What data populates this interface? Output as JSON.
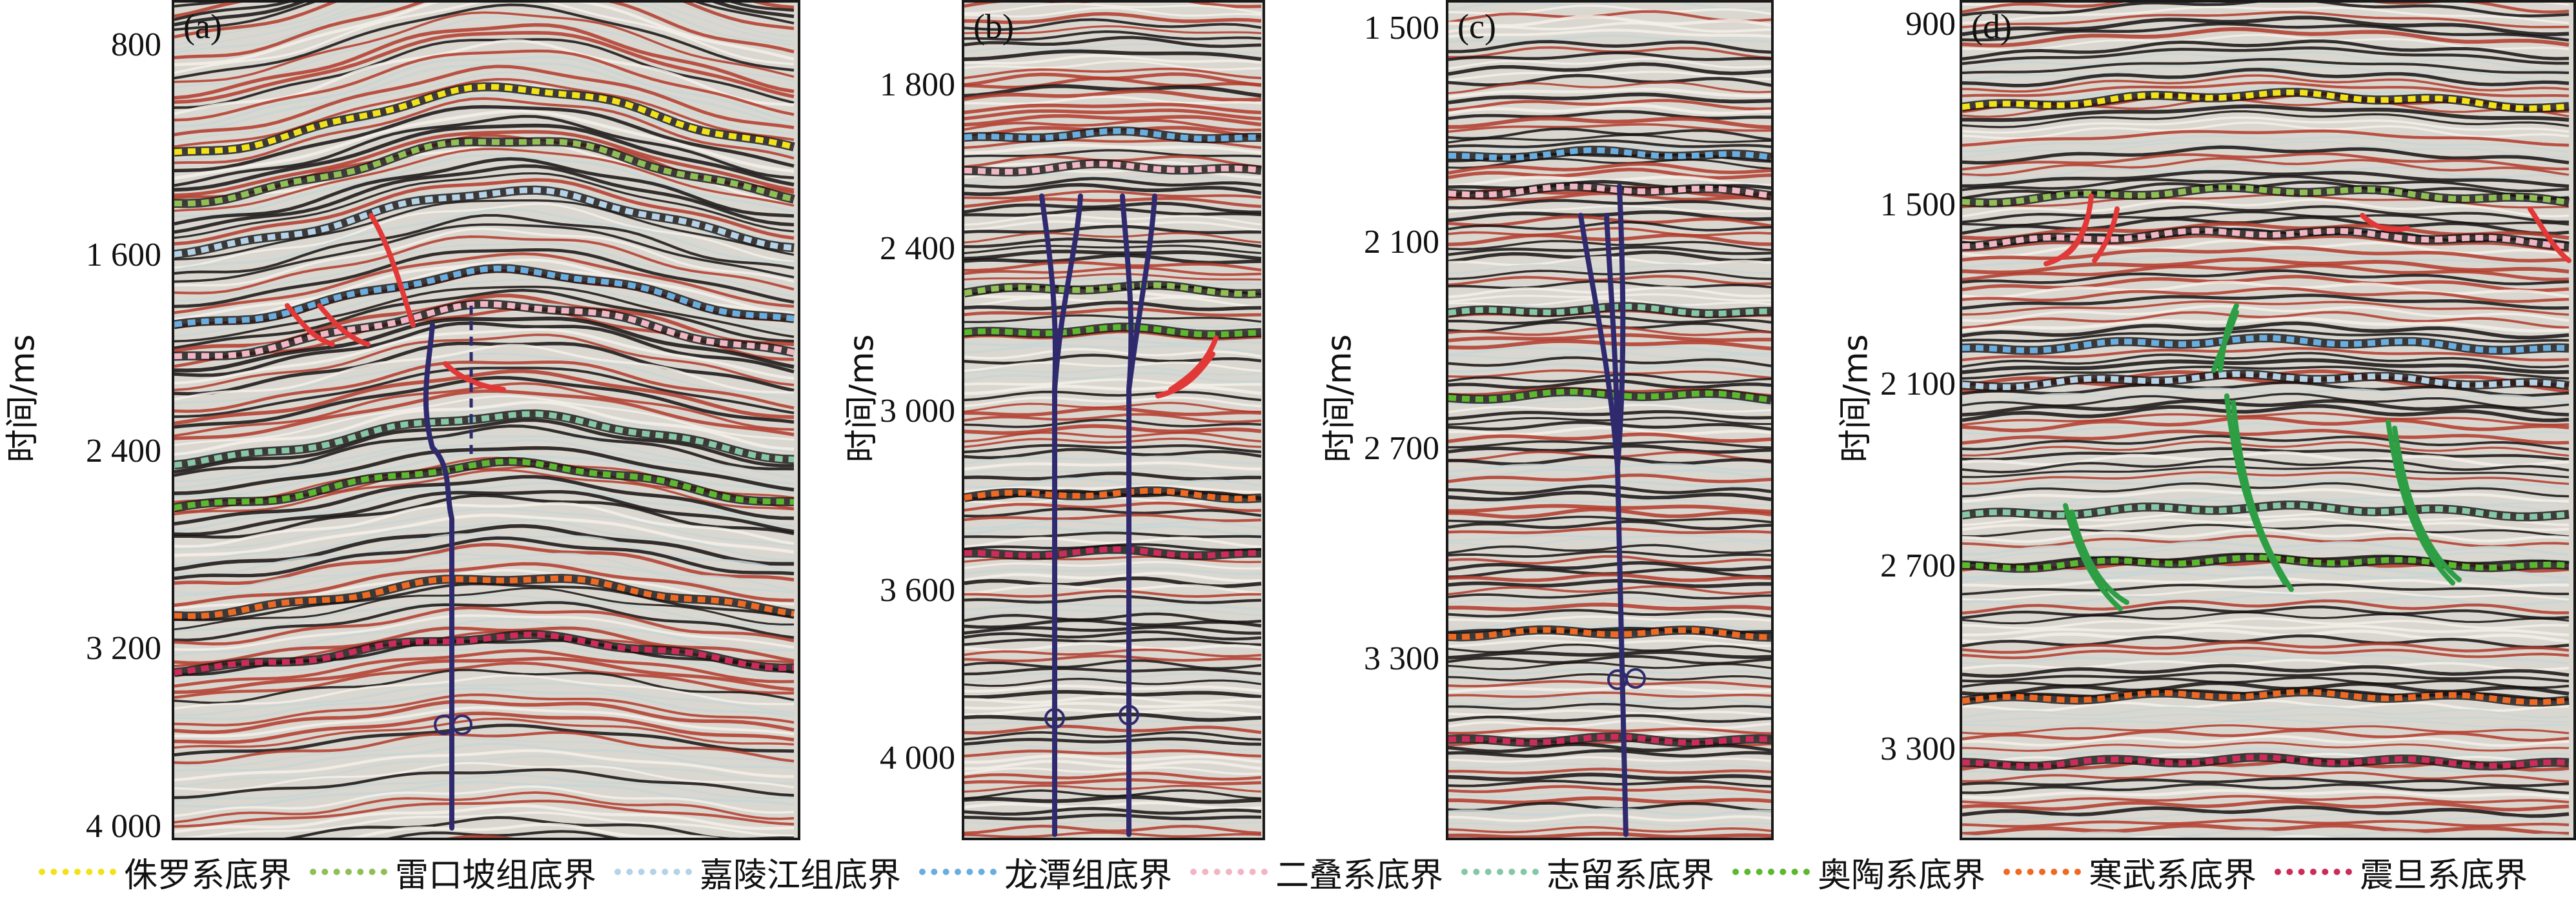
{
  "colors": {
    "jurassic": "#f2e21a",
    "leikoupo": "#8fbf55",
    "jialingjiang": "#b5d2e6",
    "longtan": "#6aaee0",
    "permian": "#f0b6c4",
    "silurian": "#86c7a6",
    "ordovician": "#5cb82e",
    "cambrian": "#ee6a24",
    "sinian": "#cc2c5a",
    "fault_red": "#e23838",
    "fault_green": "#2e9e44",
    "well": "#2f2a6e"
  },
  "panels": [
    {
      "label": "(a)",
      "ylabel": "时间/ms",
      "ticks": [
        "800",
        "1 600",
        "2 400",
        "3 200",
        "4 000"
      ]
    },
    {
      "label": "(b)",
      "ylabel": "时间/ms",
      "ticks": [
        "1 800",
        "2 400",
        "3 000",
        "3 600",
        "4 000"
      ]
    },
    {
      "label": "(c)",
      "ylabel": "时间/ms",
      "ticks": [
        "1 500",
        "2 100",
        "2 700",
        "3 300"
      ]
    },
    {
      "label": "(d)",
      "ylabel": "时间/ms",
      "ticks": [
        "900",
        "1 500",
        "2 100",
        "2 700",
        "3 300"
      ]
    }
  ],
  "legend": [
    {
      "label": "侏罗系底界",
      "color": "#f2e21a"
    },
    {
      "label": "雷口坡组底界",
      "color": "#8fbf55"
    },
    {
      "label": "嘉陵江组底界",
      "color": "#b5d2e6"
    },
    {
      "label": "龙潭组底界",
      "color": "#6aaee0"
    },
    {
      "label": "二叠系底界",
      "color": "#f0b6c4"
    },
    {
      "label": "志留系底界",
      "color": "#86c7a6"
    },
    {
      "label": "奥陶系底界",
      "color": "#5cb82e"
    },
    {
      "label": "寒武系底界",
      "color": "#ee6a24"
    },
    {
      "label": "震旦系底界",
      "color": "#cc2c5a"
    }
  ]
}
